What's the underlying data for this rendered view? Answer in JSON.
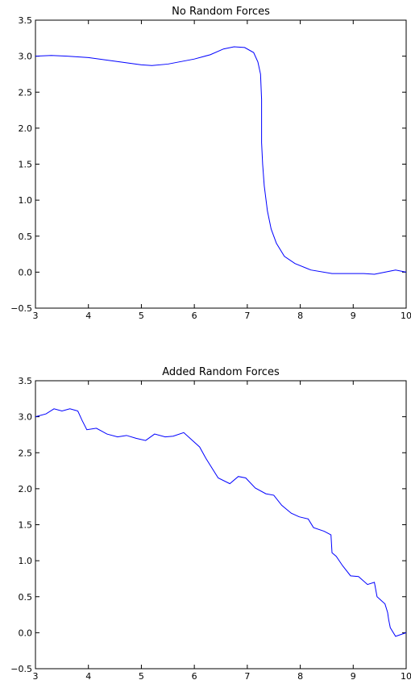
{
  "chart_data": [
    {
      "type": "line",
      "title": "No Random Forces",
      "xlabel": "",
      "ylabel": "",
      "xlim": [
        3,
        10
      ],
      "ylim": [
        -0.5,
        3.5
      ],
      "grid": false,
      "x_ticks": [
        "3",
        "4",
        "5",
        "6",
        "7",
        "8",
        "9",
        "10"
      ],
      "y_ticks": [
        "−0.5",
        "0.0",
        "0.5",
        "1.0",
        "1.5",
        "2.0",
        "2.5",
        "3.0",
        "3.5"
      ],
      "series": [
        {
          "color": "#0000ff",
          "x": [
            3.0,
            3.3,
            3.6,
            4.0,
            4.5,
            5.0,
            5.2,
            5.5,
            6.0,
            6.3,
            6.55,
            6.75,
            6.95,
            7.12,
            7.2,
            7.25,
            7.27,
            7.27,
            7.27,
            7.29,
            7.32,
            7.38,
            7.45,
            7.55,
            7.7,
            7.9,
            8.2,
            8.6,
            8.9,
            9.2,
            9.4,
            9.6,
            9.8,
            10.0
          ],
          "y": [
            3.0,
            3.01,
            3.0,
            2.98,
            2.93,
            2.88,
            2.87,
            2.89,
            2.96,
            3.02,
            3.1,
            3.13,
            3.12,
            3.05,
            2.92,
            2.75,
            2.4,
            2.1,
            1.8,
            1.5,
            1.2,
            0.85,
            0.6,
            0.4,
            0.22,
            0.12,
            0.03,
            -0.02,
            -0.02,
            -0.02,
            -0.03,
            0.0,
            0.03,
            0.0
          ]
        }
      ]
    },
    {
      "type": "line",
      "title": "Added Random Forces",
      "xlabel": "",
      "ylabel": "",
      "xlim": [
        3,
        10
      ],
      "ylim": [
        -0.5,
        3.5
      ],
      "grid": false,
      "x_ticks": [
        "3",
        "4",
        "5",
        "6",
        "7",
        "8",
        "9",
        "10"
      ],
      "y_ticks": [
        "−0.5",
        "0.0",
        "0.5",
        "1.0",
        "1.5",
        "2.0",
        "2.5",
        "3.0",
        "3.5"
      ],
      "series": [
        {
          "color": "#0000ff",
          "x": [
            3.0,
            3.2,
            3.35,
            3.5,
            3.65,
            3.8,
            3.88,
            3.97,
            4.15,
            4.35,
            4.55,
            4.72,
            4.9,
            5.08,
            5.25,
            5.45,
            5.6,
            5.8,
            6.1,
            6.22,
            6.45,
            6.67,
            6.83,
            6.97,
            7.15,
            7.35,
            7.5,
            7.65,
            7.83,
            7.98,
            8.15,
            8.25,
            8.45,
            8.58,
            8.6,
            8.68,
            8.8,
            8.95,
            9.1,
            9.27,
            9.4,
            9.45,
            9.6,
            9.65,
            9.67,
            9.7,
            9.8,
            10.0
          ],
          "y": [
            3.0,
            3.04,
            3.11,
            3.08,
            3.11,
            3.08,
            2.95,
            2.82,
            2.84,
            2.76,
            2.72,
            2.74,
            2.7,
            2.67,
            2.76,
            2.72,
            2.73,
            2.78,
            2.58,
            2.42,
            2.15,
            2.07,
            2.17,
            2.15,
            2.01,
            1.93,
            1.91,
            1.77,
            1.66,
            1.61,
            1.58,
            1.46,
            1.41,
            1.36,
            1.11,
            1.06,
            0.93,
            0.79,
            0.78,
            0.67,
            0.7,
            0.5,
            0.4,
            0.28,
            0.18,
            0.07,
            -0.05,
            0.0
          ]
        }
      ]
    }
  ],
  "colors": {
    "line": "#0000ff",
    "axes": "#000000",
    "background": "#ffffff"
  }
}
